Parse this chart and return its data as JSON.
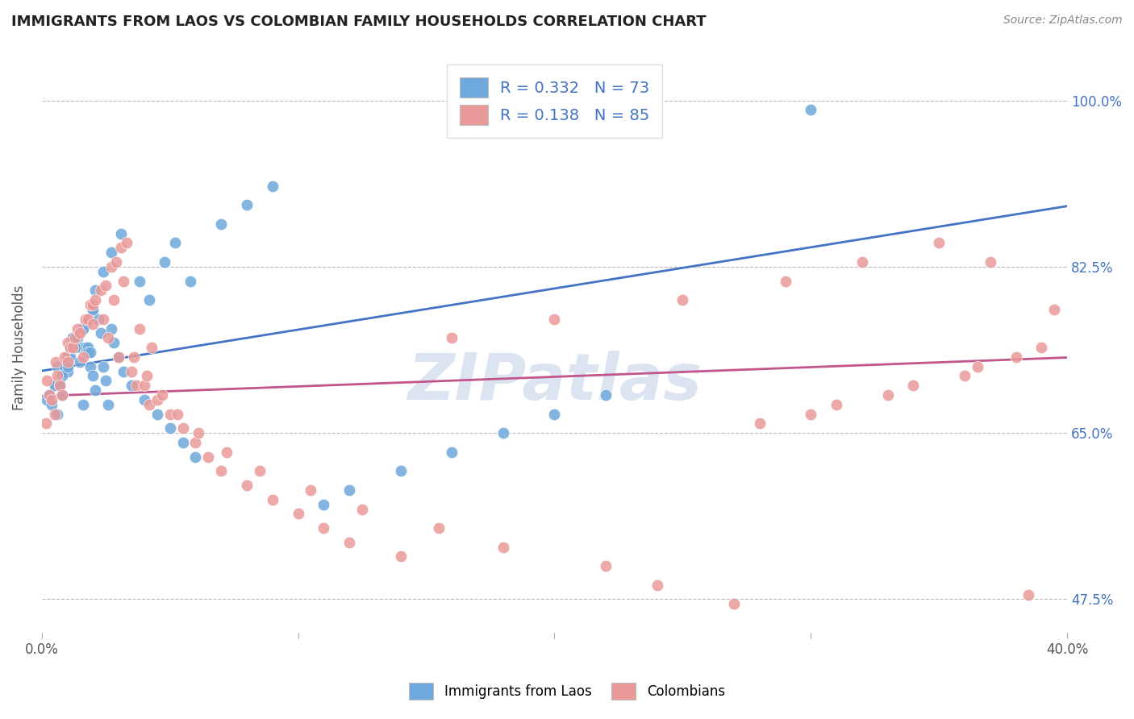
{
  "title": "IMMIGRANTS FROM LAOS VS COLOMBIAN FAMILY HOUSEHOLDS CORRELATION CHART",
  "source": "Source: ZipAtlas.com",
  "ylabel": "Family Households",
  "xlim": [
    0.0,
    40.0
  ],
  "ylim": [
    44.0,
    104.0
  ],
  "ytick_positions": [
    47.5,
    65.0,
    82.5,
    100.0
  ],
  "ytick_labels": [
    "47.5%",
    "65.0%",
    "82.5%",
    "100.0%"
  ],
  "xtick_positions": [
    0.0,
    10.0,
    20.0,
    30.0,
    40.0
  ],
  "xtick_labels": [
    "0.0%",
    "",
    "",
    "",
    "40.0%"
  ],
  "blue_color": "#6fa8dc",
  "pink_color": "#ea9999",
  "blue_line_color": "#4472c4",
  "pink_line_color": "#c2558b",
  "watermark": "ZIPatlas",
  "watermark_color": "#c0cfe8",
  "r_blue": 0.332,
  "n_blue": 73,
  "r_pink": 0.138,
  "n_pink": 85,
  "legend_label_blue": "Immigrants from Laos",
  "legend_label_pink": "Colombians",
  "blue_x": [
    0.2,
    0.3,
    0.4,
    0.5,
    0.6,
    0.7,
    0.8,
    0.9,
    1.0,
    1.0,
    1.1,
    1.1,
    1.2,
    1.2,
    1.3,
    1.4,
    1.5,
    1.5,
    1.6,
    1.6,
    1.7,
    1.7,
    1.8,
    1.8,
    1.9,
    1.9,
    2.0,
    2.0,
    2.1,
    2.1,
    2.2,
    2.3,
    2.4,
    2.5,
    2.6,
    2.7,
    2.8,
    3.0,
    3.2,
    3.5,
    3.8,
    4.0,
    4.5,
    4.8,
    5.0,
    5.2,
    5.5,
    5.8,
    6.0,
    7.0,
    8.0,
    9.0,
    11.0,
    12.0,
    14.0,
    16.0,
    18.0,
    20.0,
    22.0,
    30.0,
    0.5,
    0.6,
    0.7,
    0.8,
    1.0,
    1.3,
    1.6,
    2.0,
    2.4,
    2.7,
    3.1,
    4.2,
    0.3
  ],
  "blue_y": [
    68.5,
    69.0,
    68.0,
    70.0,
    72.0,
    70.0,
    69.0,
    72.0,
    71.5,
    73.0,
    73.0,
    74.0,
    74.5,
    75.0,
    74.0,
    75.0,
    72.5,
    74.0,
    68.0,
    76.0,
    76.5,
    74.0,
    74.0,
    73.5,
    73.5,
    72.0,
    71.0,
    78.0,
    69.5,
    80.0,
    77.0,
    75.5,
    72.0,
    70.5,
    68.0,
    76.0,
    74.5,
    73.0,
    71.5,
    70.0,
    81.0,
    68.5,
    67.0,
    83.0,
    65.5,
    85.0,
    64.0,
    81.0,
    62.5,
    87.0,
    89.0,
    91.0,
    57.5,
    59.0,
    61.0,
    63.0,
    65.0,
    67.0,
    69.0,
    99.0,
    70.0,
    67.0,
    70.0,
    71.0,
    72.0,
    74.0,
    76.0,
    78.0,
    82.0,
    84.0,
    86.0,
    79.0,
    69.0
  ],
  "pink_x": [
    0.15,
    0.2,
    0.3,
    0.4,
    0.5,
    0.55,
    0.6,
    0.7,
    0.8,
    0.9,
    1.0,
    1.0,
    1.1,
    1.2,
    1.3,
    1.4,
    1.5,
    1.6,
    1.7,
    1.8,
    1.9,
    2.0,
    2.0,
    2.1,
    2.3,
    2.4,
    2.5,
    2.6,
    2.7,
    2.8,
    2.9,
    3.0,
    3.1,
    3.2,
    3.3,
    3.5,
    3.6,
    3.7,
    3.8,
    4.0,
    4.1,
    4.2,
    4.3,
    4.5,
    4.7,
    5.0,
    5.3,
    5.5,
    6.0,
    6.1,
    6.5,
    7.0,
    7.2,
    8.0,
    8.5,
    9.0,
    10.0,
    10.5,
    11.0,
    12.0,
    12.5,
    14.0,
    15.5,
    16.0,
    18.0,
    20.0,
    22.0,
    24.0,
    25.0,
    27.0,
    28.0,
    29.0,
    30.0,
    31.0,
    32.0,
    33.0,
    34.0,
    35.0,
    36.0,
    36.5,
    37.0,
    38.0,
    39.0,
    39.5,
    38.5
  ],
  "pink_y": [
    66.0,
    70.5,
    69.0,
    68.5,
    67.0,
    72.5,
    71.0,
    70.0,
    69.0,
    73.0,
    72.5,
    74.5,
    74.0,
    74.0,
    75.0,
    76.0,
    75.5,
    73.0,
    77.0,
    77.0,
    78.5,
    78.5,
    76.5,
    79.0,
    80.0,
    77.0,
    80.5,
    75.0,
    82.5,
    79.0,
    83.0,
    73.0,
    84.5,
    81.0,
    85.0,
    71.5,
    73.0,
    70.0,
    76.0,
    70.0,
    71.0,
    68.0,
    74.0,
    68.5,
    69.0,
    67.0,
    67.0,
    65.5,
    64.0,
    65.0,
    62.5,
    61.0,
    63.0,
    59.5,
    61.0,
    58.0,
    56.5,
    59.0,
    55.0,
    53.5,
    57.0,
    52.0,
    55.0,
    75.0,
    53.0,
    77.0,
    51.0,
    49.0,
    79.0,
    47.0,
    66.0,
    81.0,
    67.0,
    68.0,
    83.0,
    69.0,
    70.0,
    85.0,
    71.0,
    72.0,
    83.0,
    73.0,
    74.0,
    78.0,
    48.0
  ]
}
